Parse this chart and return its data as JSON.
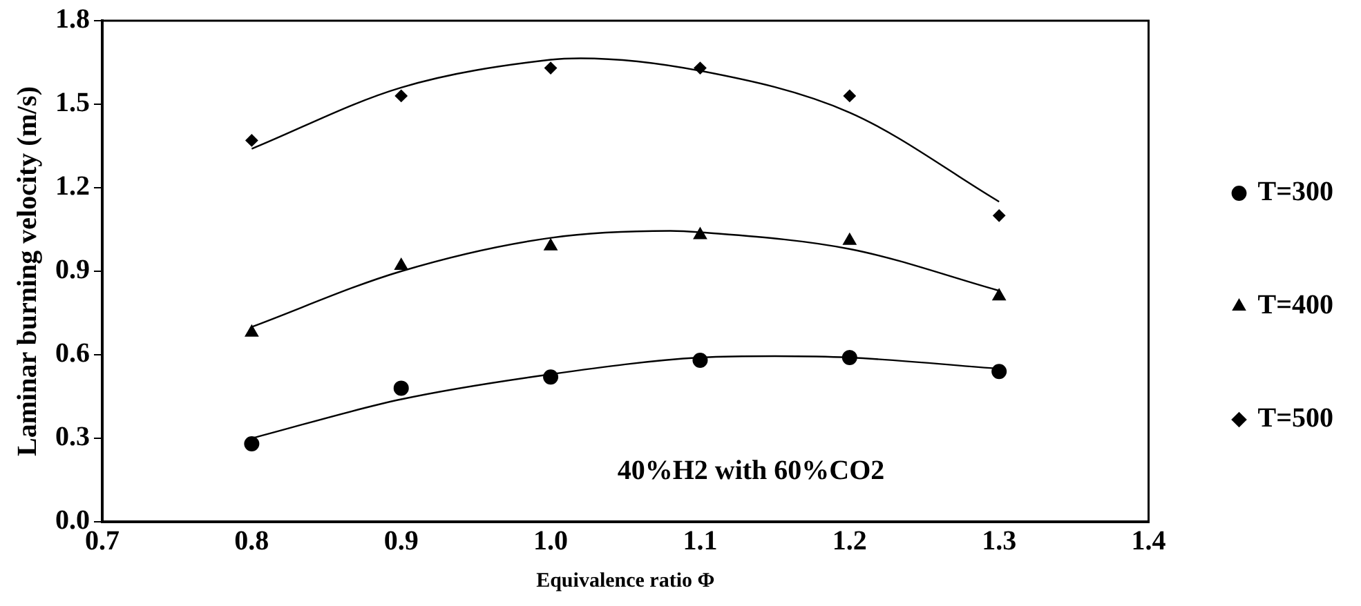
{
  "chart_data": {
    "type": "scatter",
    "xlabel": "Equivalence ratio Φ",
    "ylabel": "Laminar burning velocity (m/s)",
    "xlim": [
      0.7,
      1.4
    ],
    "xticks": [
      0.7,
      0.8,
      0.9,
      {
        "value": 1,
        "label": "1.0"
      },
      1.1,
      1.2,
      1.3,
      1.4
    ],
    "ylim": [
      0,
      1.8
    ],
    "yticks": [
      {
        "value": 0,
        "label": "0.0"
      },
      0.3,
      0.6,
      0.9,
      1.2,
      1.5,
      1.8
    ],
    "grid": false,
    "legend": "right",
    "annotations": [
      "40%H2 with 60%CO2"
    ],
    "series": [
      {
        "name": "T=300",
        "color": "#000000",
        "marker": "circle",
        "x": [
          0.8,
          0.9,
          1.0,
          1.1,
          1.2,
          1.3
        ],
        "values": [
          0.28,
          0.48,
          0.52,
          0.58,
          0.59,
          0.54
        ]
      },
      {
        "name": "T=400",
        "color": "#000000",
        "marker": "triangle",
        "x": [
          0.8,
          0.9,
          1.0,
          1.1,
          1.2,
          1.3
        ],
        "values": [
          0.68,
          0.92,
          0.99,
          1.03,
          1.01,
          0.81
        ]
      },
      {
        "name": "T=500",
        "color": "#000000",
        "marker": "diamond",
        "x": [
          0.8,
          0.9,
          1.0,
          1.1,
          1.2,
          1.3
        ],
        "values": [
          1.37,
          1.53,
          1.63,
          1.63,
          1.53,
          1.1
        ]
      },
      {
        "type": "line",
        "color": "#000000",
        "marker": "none",
        "x": [
          0.8,
          0.9,
          1.0,
          1.1,
          1.15,
          1.2,
          1.3
        ],
        "values": [
          0.3,
          0.44,
          0.53,
          0.59,
          0.595,
          0.59,
          0.55
        ]
      },
      {
        "type": "line",
        "color": "#000000",
        "marker": "none",
        "x": [
          0.8,
          0.9,
          1.0,
          1.08,
          1.1,
          1.2,
          1.3
        ],
        "values": [
          0.7,
          0.9,
          1.02,
          1.045,
          1.04,
          0.98,
          0.83
        ]
      },
      {
        "type": "line",
        "color": "#000000",
        "marker": "none",
        "x": [
          0.8,
          0.9,
          1.0,
          1.02,
          1.1,
          1.2,
          1.3
        ],
        "values": [
          1.34,
          1.56,
          1.66,
          1.665,
          1.62,
          1.47,
          1.15
        ]
      }
    ]
  }
}
